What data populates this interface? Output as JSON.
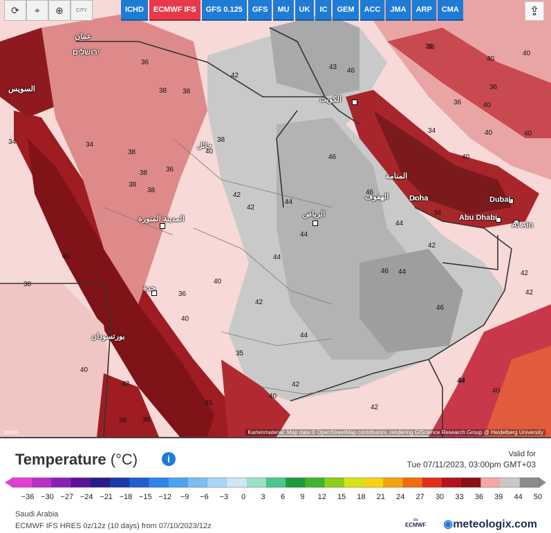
{
  "toolbar": {
    "reset_icon": "refresh-icon",
    "location_icon": "map-pin-icon",
    "zoom_icon": "zoom-icon",
    "city_toggle_label": "CITY"
  },
  "models": [
    {
      "label": "ICHD",
      "active": false
    },
    {
      "label": "ECMWF IFS",
      "active": true
    },
    {
      "label": "GFS 0.125",
      "active": false
    },
    {
      "label": "GFS",
      "active": false
    },
    {
      "label": "MU",
      "active": false
    },
    {
      "label": "UK",
      "active": false
    },
    {
      "label": "IC",
      "active": false
    },
    {
      "label": "GEM",
      "active": false
    },
    {
      "label": "ACC",
      "active": false
    },
    {
      "label": "JMA",
      "active": false
    },
    {
      "label": "ARP",
      "active": false
    },
    {
      "label": "CMA",
      "active": false
    }
  ],
  "share_icon": "share-icon",
  "cities": {
    "doha": "Doha",
    "dubai": "Dubai",
    "abu_dhabi": "Abu Dhabi",
    "al_ain": "Al Ain",
    "riyadh": "الرياض",
    "kuwait": "الكويت",
    "manama": "المنامة",
    "hofuf": "الهفوف",
    "medina": "المدينة المنورة",
    "jeddah": "جدة",
    "hail": "حائل",
    "port_sudan": "بورتسودان",
    "amman": "عمان",
    "jerusalem": "ירושלים",
    "suez": "السويس"
  },
  "temperature_labels": [
    "36",
    "38",
    "38",
    "34",
    "34",
    "38",
    "38",
    "36",
    "38",
    "38",
    "40",
    "40",
    "42",
    "42",
    "42",
    "44",
    "44",
    "44",
    "46",
    "46",
    "46",
    "46",
    "43",
    "44",
    "42",
    "40",
    "40",
    "36",
    "36",
    "34",
    "36",
    "34",
    "40",
    "40",
    "42",
    "40",
    "42",
    "40",
    "36",
    "35",
    "42",
    "42",
    "40",
    "38",
    "38",
    "40",
    "42",
    "44",
    "44",
    "46",
    "42",
    "44",
    "40",
    "40",
    "36",
    "40",
    "38",
    "33",
    "38",
    "44"
  ],
  "attribution": "Kartenmaterial: Map data © OpenStreetMap contributors, rendering GIScience Research Group @ Heidelberg University",
  "attribution_left": "toum",
  "legend": {
    "title": "Temperature",
    "unit": "(°C)",
    "info_icon": "info-icon",
    "valid_label": "Valid for",
    "valid_time": "Tue 07/11/2023, 03:00pm GMT+03",
    "ticks": [
      "−36",
      "−30",
      "−27",
      "−24",
      "−21",
      "−18",
      "−15",
      "−12",
      "−9",
      "−6",
      "−3",
      "0",
      "3",
      "6",
      "9",
      "12",
      "15",
      "18",
      "21",
      "24",
      "27",
      "30",
      "33",
      "36",
      "39",
      "44",
      "50"
    ],
    "colors": [
      "#e23fd6",
      "#b92fc7",
      "#8a1fb5",
      "#5a1296",
      "#2a1a8a",
      "#1b3ca8",
      "#1f5fd0",
      "#2f83e6",
      "#4ea3f0",
      "#79bdf3",
      "#a9d5f5",
      "#cfe6f3",
      "#9be0c8",
      "#4cc58f",
      "#1f9b3e",
      "#3fb52a",
      "#8ccf1d",
      "#d9e21a",
      "#f5d313",
      "#f5a311",
      "#ee6d11",
      "#e0301a",
      "#b4131d",
      "#8b0f14",
      "#f3a7a7",
      "#c8c8c8",
      "#8c8c8c"
    ]
  },
  "footer": {
    "region": "Saudi Arabia",
    "model_run": "ECMWF IFS HRES 0z/12z (10 days) from 07/10/2023/12z",
    "brand": "meteologix.com",
    "ecmwf": "ECMWF"
  }
}
